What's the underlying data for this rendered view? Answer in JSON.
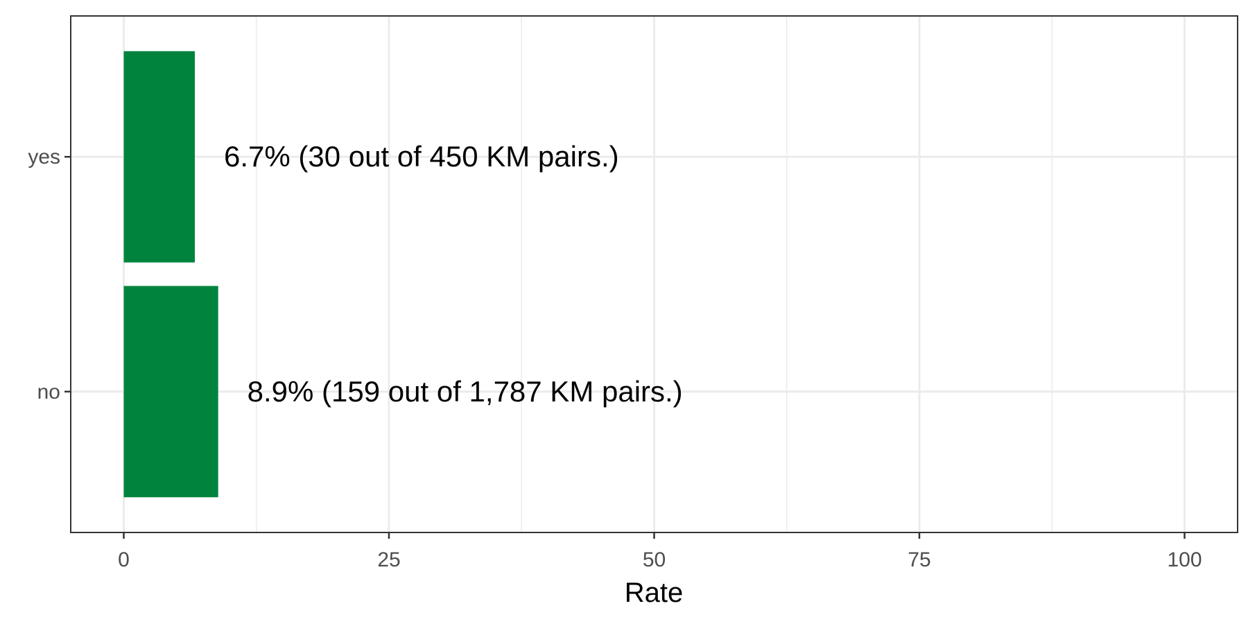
{
  "chart_data": {
    "type": "bar",
    "orientation": "horizontal",
    "categories": [
      "yes",
      "no"
    ],
    "values": [
      6.7,
      8.9
    ],
    "data_labels": [
      "6.7% (30 out of 450 KM pairs.)",
      "8.9% (159 out of 1,787 KM pairs.)"
    ],
    "title": "",
    "xlabel": "Rate",
    "ylabel": "",
    "xlim": [
      -5,
      105
    ],
    "xticks": [
      0,
      25,
      50,
      75,
      100
    ],
    "xtick_labels": [
      "0",
      "25",
      "50",
      "75",
      "100"
    ],
    "grid": true,
    "legend": "none",
    "bar_color": "#00843d",
    "grid_color": "#ebebeb",
    "panel_border_color": "#333333"
  }
}
